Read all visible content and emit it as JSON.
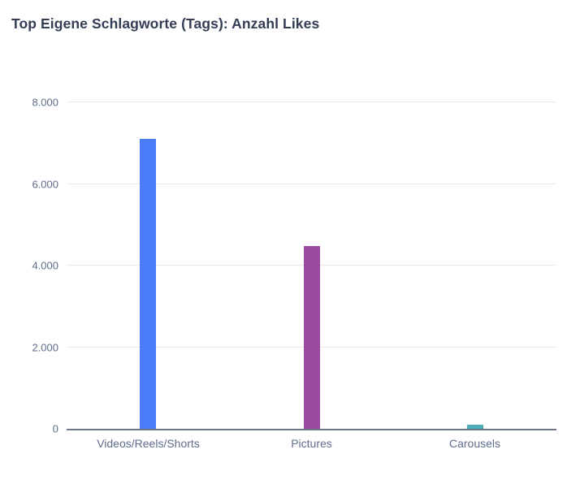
{
  "chart_data": {
    "type": "bar",
    "title": "Top Eigene Schlagworte (Tags): Anzahl Likes",
    "categories": [
      "Videos/Reels/Shorts",
      "Pictures",
      "Carousels"
    ],
    "values": [
      7100,
      4480,
      100
    ],
    "bar_colors": [
      "#4b7cf7",
      "#9c4aa0",
      "#49aeb7"
    ],
    "xlabel": "",
    "ylabel": "",
    "ylim": [
      0,
      8000
    ],
    "yticks": [
      {
        "value": 0,
        "label": "0"
      },
      {
        "value": 2000,
        "label": "2.000"
      },
      {
        "value": 4000,
        "label": "4.000"
      },
      {
        "value": 6000,
        "label": "6.000"
      },
      {
        "value": 8000,
        "label": "8.000"
      }
    ],
    "grid": "horizontal",
    "legend": "none",
    "gridline_color": "#e7e8ec",
    "axis_line_color": "#6f7889",
    "label_color": "#5e6d8c",
    "title_color": "#333d55",
    "background_color": "#ffffff"
  }
}
